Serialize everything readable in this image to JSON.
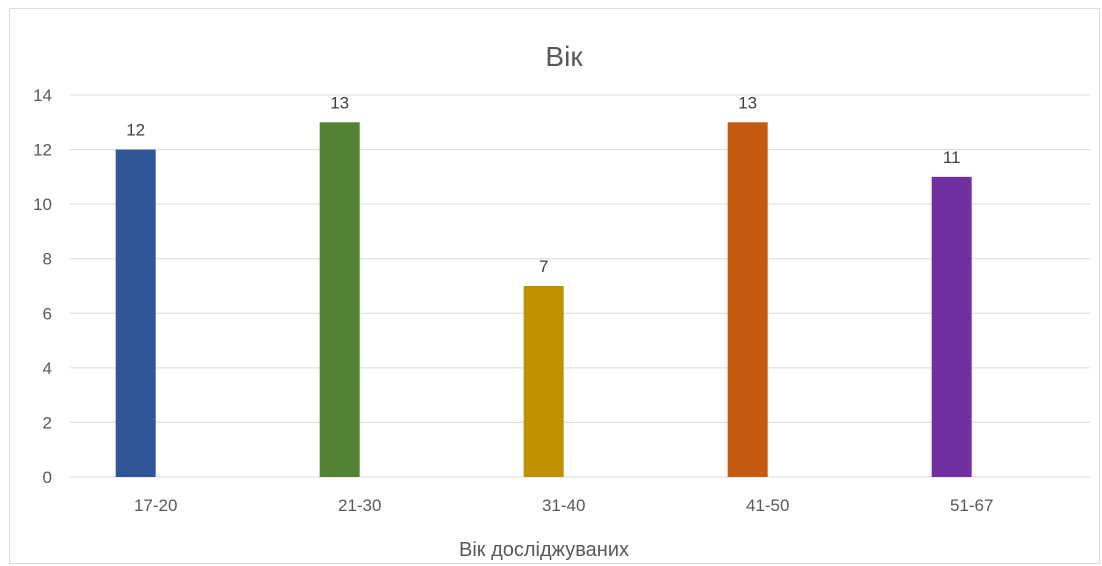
{
  "chart_data": {
    "type": "bar",
    "title": "Вік",
    "xlabel": "Вік досліджуваних",
    "ylabel": "",
    "categories": [
      "17-20",
      "21-30",
      "31-40",
      "41-50",
      "51-67"
    ],
    "values": [
      12,
      13,
      7,
      13,
      11
    ],
    "colors": [
      "#2f5597",
      "#548235",
      "#bf9000",
      "#c55a11",
      "#7030a0"
    ],
    "ylim": [
      0,
      14
    ],
    "yticks": [
      0,
      2,
      4,
      6,
      8,
      10,
      12,
      14
    ],
    "grid": true,
    "legend": "none"
  }
}
